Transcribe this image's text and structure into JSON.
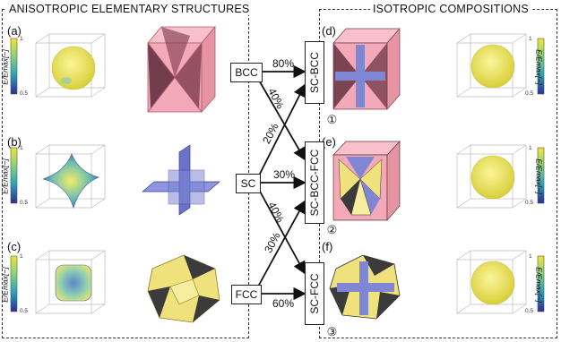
{
  "sections": {
    "left_title": "ANISOTROPIC ELEMENTARY STRUCTURES",
    "right_title": "ISOTROPIC COMPOSITIONS"
  },
  "panel_labels": {
    "a": "(a)",
    "b": "(b)",
    "c": "(c)",
    "d": "(d)",
    "e": "(e)",
    "f": "(f)"
  },
  "elementary": {
    "bcc": "BCC",
    "sc": "SC",
    "fcc": "FCC"
  },
  "compositions": {
    "sc_bcc": "SC-BCC",
    "sc_bcc_fcc": "SC-BCC-FCC",
    "sc_fcc": "SC-FCC"
  },
  "percentages": {
    "bcc_to_scbcc": "80%",
    "bcc_to_scbccfcc": "40%",
    "sc_to_scbcc": "20%",
    "sc_to_scbccfcc": "30%",
    "sc_to_scfcc": "40%",
    "fcc_to_scbccfcc": "30%",
    "fcc_to_scfcc": "60%"
  },
  "numbers": {
    "n1": "①",
    "n2": "②",
    "n3": "③"
  },
  "colorbar": {
    "max": "1",
    "min": "0.5",
    "label": "E/Emax[−]"
  },
  "colors": {
    "pink": "#f4a9b8",
    "blue": "#7f86d3",
    "yellow": "#eee27a",
    "dark": "#3b3b3b"
  }
}
